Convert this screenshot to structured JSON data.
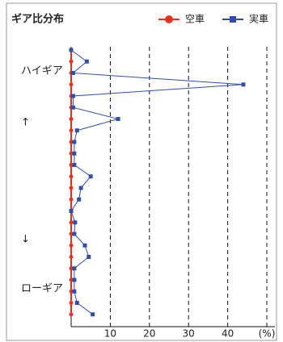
{
  "chart_data": {
    "type": "line",
    "orientation": "horizontal",
    "title": "ギア比分布",
    "categories": [
      null,
      null,
      null,
      null,
      null,
      null,
      null,
      null,
      null,
      null,
      null,
      null,
      null,
      null,
      null,
      null,
      null,
      null,
      null,
      null,
      null,
      null,
      null,
      null
    ],
    "series": [
      {
        "name": "空車",
        "color": "#e8321e",
        "marker": "circle",
        "values": [
          0,
          0,
          0,
          0,
          0,
          0,
          0,
          0,
          0,
          0,
          0,
          0,
          0,
          0,
          0,
          0,
          0,
          0,
          0,
          0,
          0,
          0,
          0,
          0
        ]
      },
      {
        "name": "実車",
        "color": "#2f4fa8",
        "marker": "square",
        "values": [
          0,
          4,
          0.5,
          44,
          0.5,
          0.5,
          12,
          1.5,
          0.8,
          0.8,
          0.8,
          5,
          2.5,
          2,
          0,
          1,
          0.8,
          3.5,
          4.5,
          0.8,
          0.8,
          0.8,
          1.5,
          5.5
        ]
      }
    ],
    "xlim": [
      0,
      50
    ],
    "xticks": [
      10,
      20,
      30,
      40,
      {
        "value": 50,
        "label": "(%)"
      }
    ],
    "grid": true,
    "legend": "top-right",
    "annotations": [
      "ハイギア",
      "↑",
      "↓",
      "ローギア"
    ]
  }
}
